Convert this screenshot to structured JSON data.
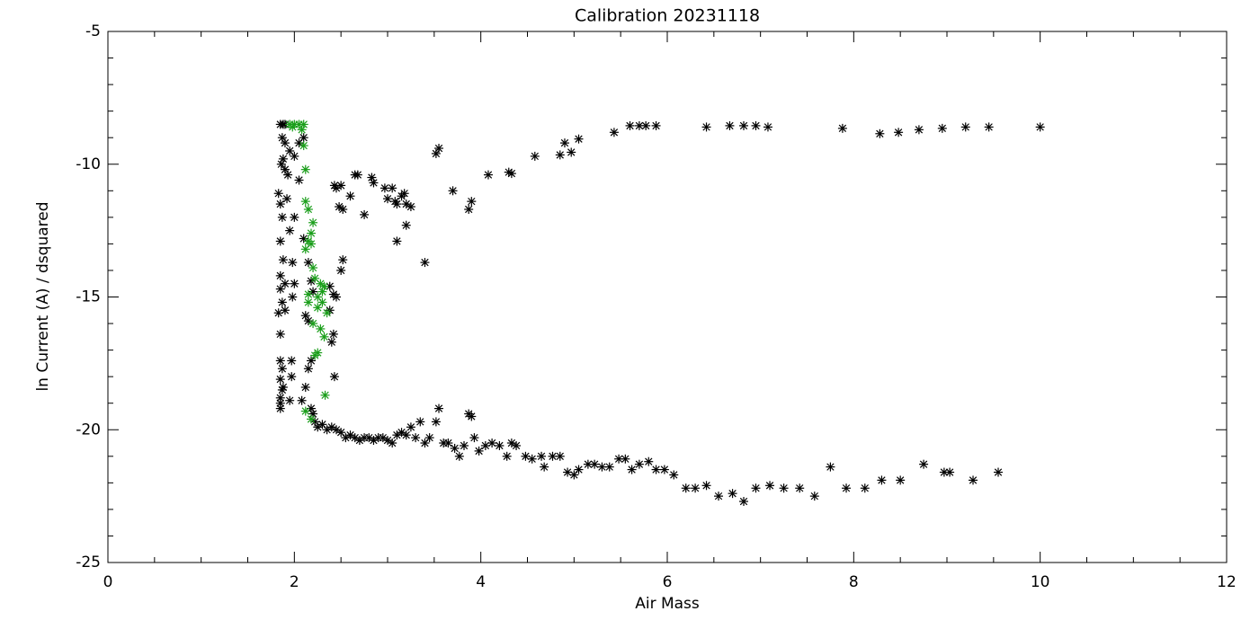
{
  "chart_data": {
    "type": "scatter",
    "title": "Calibration 20231118",
    "x_label": "Air Mass",
    "y_label": "ln Current (A) / dsquared",
    "xlim": [
      0,
      12
    ],
    "xticks": [
      0,
      2,
      4,
      6,
      8,
      10,
      12
    ],
    "ylim": [
      -25,
      -5
    ],
    "yticks": [
      -25,
      -20,
      -15,
      -10,
      -5
    ],
    "x_minor_divisions": 4,
    "y_minor_divisions": 5,
    "marker": "asterisk",
    "series": [
      {
        "color": "#000000",
        "x": [
          1.85,
          1.88,
          1.9,
          1.87,
          1.9,
          1.88,
          1.86,
          1.9,
          1.95,
          2.0,
          2.05,
          2.05,
          2.1,
          1.93,
          2.43,
          2.45,
          2.5,
          2.65,
          2.68,
          2.83,
          2.85,
          2.97,
          3.05,
          3.08,
          3.1,
          3.15,
          3.18,
          3.2,
          3.25,
          3.0,
          2.6,
          2.48,
          2.52,
          2.75,
          3.2,
          3.1,
          3.4,
          3.55,
          3.52,
          3.7,
          3.87,
          3.9,
          4.08,
          4.3,
          4.33,
          4.58,
          4.85,
          4.9,
          4.97,
          5.05,
          5.43,
          5.6,
          5.7,
          5.77,
          5.88,
          6.42,
          6.67,
          6.82,
          6.95,
          7.08,
          7.88,
          8.28,
          8.48,
          8.7,
          8.95,
          9.2,
          9.45,
          10.0,
          1.83,
          1.85,
          1.87,
          1.92,
          1.95,
          1.85,
          1.88,
          1.85,
          1.85,
          1.9,
          1.87,
          1.83,
          1.9,
          1.85,
          1.85,
          1.87,
          1.85,
          1.87,
          1.85,
          1.85,
          1.85,
          1.88,
          1.98,
          2.0,
          1.98,
          2.0,
          1.97,
          1.97,
          1.95,
          2.08,
          2.12,
          2.15,
          2.18,
          2.12,
          2.15,
          2.2,
          2.18,
          2.38,
          2.42,
          2.45,
          2.38,
          2.42,
          2.4,
          2.43,
          2.5,
          2.52,
          2.15,
          2.1,
          2.18,
          2.2,
          2.22,
          2.25,
          2.3,
          2.35,
          2.4,
          2.45,
          2.5,
          2.55,
          2.6,
          2.65,
          2.7,
          2.75,
          2.8,
          2.85,
          2.9,
          2.95,
          3.0,
          3.05,
          3.1,
          3.15,
          3.2,
          3.25,
          3.3,
          3.35,
          3.4,
          3.45,
          3.52,
          3.55,
          3.6,
          3.65,
          3.72,
          3.77,
          3.82,
          3.87,
          3.9,
          3.93,
          3.98,
          4.05,
          4.12,
          4.2,
          4.28,
          4.33,
          4.38,
          4.48,
          4.55,
          4.65,
          4.68,
          4.77,
          4.85,
          4.93,
          5.0,
          5.05,
          5.15,
          5.22,
          5.3,
          5.38,
          5.48,
          5.55,
          5.62,
          5.7,
          5.8,
          5.88,
          5.97,
          6.07,
          6.2,
          6.3,
          6.42,
          6.55,
          6.7,
          6.82,
          6.95,
          7.1,
          7.25,
          7.42,
          7.58,
          7.75,
          7.92,
          8.12,
          8.3,
          8.5,
          8.75,
          8.97,
          9.03,
          9.28,
          9.55
        ],
        "values": [
          -8.5,
          -8.5,
          -8.5,
          -9.0,
          -9.2,
          -9.8,
          -10.0,
          -10.2,
          -9.5,
          -9.7,
          -10.6,
          -9.2,
          -9.0,
          -10.4,
          -10.8,
          -10.9,
          -10.8,
          -10.4,
          -10.4,
          -10.5,
          -10.7,
          -10.9,
          -10.9,
          -11.4,
          -11.5,
          -11.2,
          -11.1,
          -11.5,
          -11.6,
          -11.3,
          -11.2,
          -11.6,
          -11.7,
          -11.9,
          -12.3,
          -12.9,
          -13.7,
          -9.4,
          -9.6,
          -11.0,
          -11.7,
          -11.4,
          -10.4,
          -10.3,
          -10.35,
          -9.7,
          -9.65,
          -9.2,
          -9.55,
          -9.05,
          -8.8,
          -8.55,
          -8.55,
          -8.55,
          -8.55,
          -8.6,
          -8.55,
          -8.55,
          -8.55,
          -8.6,
          -8.65,
          -8.85,
          -8.8,
          -8.7,
          -8.65,
          -8.6,
          -8.6,
          -8.6,
          -11.1,
          -11.5,
          -12.0,
          -11.3,
          -12.5,
          -12.9,
          -13.6,
          -14.2,
          -14.7,
          -14.5,
          -15.2,
          -15.6,
          -15.5,
          -16.4,
          -17.4,
          -17.7,
          -18.1,
          -18.5,
          -18.8,
          -19.0,
          -19.2,
          -18.4,
          -13.7,
          -14.5,
          -15.0,
          -12.0,
          -17.4,
          -18.0,
          -18.9,
          -18.9,
          -18.4,
          -17.7,
          -17.4,
          -15.7,
          -15.9,
          -14.8,
          -14.4,
          -14.6,
          -14.9,
          -15.0,
          -15.5,
          -16.4,
          -16.7,
          -18.0,
          -14.0,
          -13.6,
          -13.7,
          -12.8,
          -19.2,
          -19.4,
          -19.7,
          -19.9,
          -19.8,
          -20.0,
          -19.9,
          -20.0,
          -20.1,
          -20.3,
          -20.2,
          -20.3,
          -20.4,
          -20.3,
          -20.3,
          -20.4,
          -20.3,
          -20.3,
          -20.4,
          -20.5,
          -20.2,
          -20.1,
          -20.2,
          -19.9,
          -20.3,
          -19.7,
          -20.5,
          -20.3,
          -19.7,
          -19.2,
          -20.5,
          -20.5,
          -20.7,
          -21.0,
          -20.6,
          -19.4,
          -19.5,
          -20.3,
          -20.8,
          -20.6,
          -20.5,
          -20.6,
          -21.0,
          -20.5,
          -20.6,
          -21.0,
          -21.1,
          -21.0,
          -21.4,
          -21.0,
          -21.0,
          -21.6,
          -21.7,
          -21.5,
          -21.3,
          -21.3,
          -21.4,
          -21.4,
          -21.1,
          -21.1,
          -21.5,
          -21.3,
          -21.2,
          -21.5,
          -21.5,
          -21.7,
          -22.2,
          -22.2,
          -22.1,
          -22.5,
          -22.4,
          -22.7,
          -22.2,
          -22.1,
          -22.2,
          -22.2,
          -22.5,
          -21.4,
          -22.2,
          -22.2,
          -21.9,
          -21.9,
          -21.3,
          -21.6,
          -21.6,
          -21.9,
          -21.6
        ]
      },
      {
        "color": "#1a9e1a",
        "x": [
          1.95,
          2.0,
          2.05,
          2.1,
          1.98,
          2.08,
          2.1,
          2.12,
          2.12,
          2.15,
          2.2,
          2.18,
          2.15,
          2.12,
          2.18,
          2.2,
          2.22,
          2.28,
          2.3,
          2.32,
          2.25,
          2.3,
          2.15,
          2.15,
          2.25,
          2.35,
          2.2,
          2.28,
          2.32,
          2.25,
          2.22,
          2.33,
          2.12,
          2.18
        ],
        "values": [
          -8.5,
          -8.5,
          -8.5,
          -8.5,
          -8.6,
          -8.7,
          -9.3,
          -10.2,
          -11.4,
          -11.7,
          -12.2,
          -12.6,
          -12.9,
          -13.2,
          -13.0,
          -13.9,
          -14.3,
          -14.5,
          -14.8,
          -14.6,
          -15.0,
          -15.2,
          -14.9,
          -15.2,
          -15.4,
          -15.6,
          -16.0,
          -16.2,
          -16.5,
          -17.1,
          -17.2,
          -18.7,
          -19.3,
          -19.6
        ]
      }
    ]
  }
}
